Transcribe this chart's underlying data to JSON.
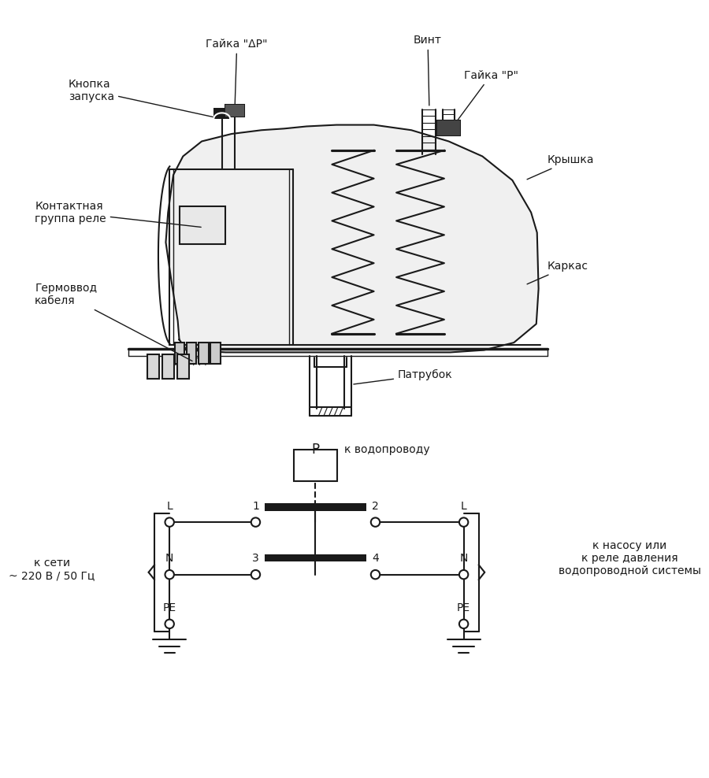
{
  "bg_color": "#ffffff",
  "line_color": "#1a1a1a",
  "fig_width": 9.0,
  "fig_height": 9.88,
  "labels": {
    "gayka_dp": "Гайка \"ΔP\"",
    "vint": "Винт",
    "knopka": "Кнопка\nзапуска",
    "gayka_p": "Гайка \"P\"",
    "kryshka": "Крышка",
    "kontaktnaya": "Контактная\nгруппа реле",
    "germo": "Гермоввод\nкабеля",
    "karkas": "Каркас",
    "patrubок": "Патрубок",
    "k_vodoprovodu": "к водопроводу",
    "k_seti": "к сети\n~ 220 В / 50 Гц",
    "k_nasosu": "к насосу или\nк реле давления\nводопроводной системы"
  }
}
